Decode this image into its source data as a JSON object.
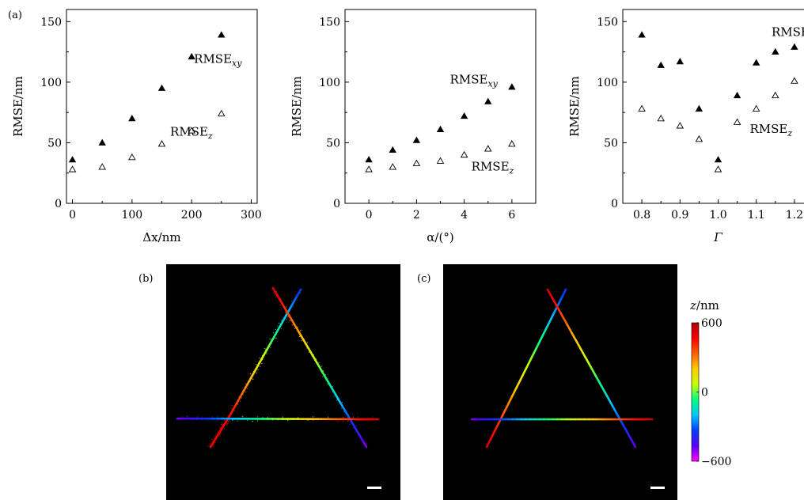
{
  "chart_data": [
    {
      "type": "scatter",
      "panel_label": "(a)",
      "xlabel": "Δx/nm",
      "ylabel": "RMSE/nm",
      "xlim": [
        -10,
        310
      ],
      "ylim": [
        0,
        160
      ],
      "xticks": [
        0,
        100,
        200,
        300
      ],
      "xminor": [
        50,
        150,
        250
      ],
      "yticks": [
        0,
        50,
        100,
        150
      ],
      "series": [
        {
          "name": "RMSExy",
          "marker": "filled-triangle",
          "x": [
            0,
            50,
            100,
            150,
            200,
            250
          ],
          "y": [
            36,
            50,
            70,
            95,
            121,
            139
          ]
        },
        {
          "name": "RMSEz",
          "marker": "open-triangle",
          "x": [
            0,
            50,
            100,
            150,
            200,
            250
          ],
          "y": [
            28,
            30,
            38,
            49,
            60,
            74
          ]
        }
      ],
      "annotations": [
        {
          "series": "RMSExy",
          "text_main": "RMSE",
          "text_sub": "xy",
          "at": [
            204,
            116
          ]
        },
        {
          "series": "RMSEz",
          "text_main": "RMSE",
          "text_sub": "z",
          "at": [
            164,
            56
          ]
        }
      ]
    },
    {
      "type": "scatter",
      "xlabel": "α/(°)",
      "ylabel": "RMSE/nm",
      "xlim": [
        -1,
        7
      ],
      "ylim": [
        0,
        160
      ],
      "xticks": [
        0,
        2,
        4,
        6
      ],
      "xminor": [
        1,
        3,
        5
      ],
      "yticks": [
        0,
        50,
        100,
        150
      ],
      "series": [
        {
          "name": "RMSExy",
          "marker": "filled-triangle",
          "x": [
            0,
            1,
            2,
            3,
            4,
            5,
            6
          ],
          "y": [
            36,
            44,
            52,
            61,
            72,
            84,
            96
          ]
        },
        {
          "name": "RMSEz",
          "marker": "open-triangle",
          "x": [
            0,
            1,
            2,
            3,
            4,
            5,
            6
          ],
          "y": [
            28,
            30,
            33,
            35,
            40,
            45,
            49
          ]
        }
      ],
      "annotations": [
        {
          "series": "RMSExy",
          "text_main": "RMSE",
          "text_sub": "xy",
          "at": [
            3.4,
            99
          ]
        },
        {
          "series": "RMSEz",
          "text_main": "RMSE",
          "text_sub": "z",
          "at": [
            4.3,
            27
          ]
        }
      ]
    },
    {
      "type": "scatter",
      "xlabel": "Γ",
      "ylabel": "RMSE/nm",
      "xlim": [
        0.75,
        1.25
      ],
      "ylim": [
        0,
        160
      ],
      "xticks": [
        0.8,
        0.9,
        1.0,
        1.1,
        1.2
      ],
      "xticklabels": [
        "0.8",
        "0.9",
        "1.0",
        "1.1",
        "1.2"
      ],
      "xminor": [
        0.85,
        0.95,
        1.05,
        1.15
      ],
      "yticks": [
        0,
        50,
        100,
        150
      ],
      "series": [
        {
          "name": "RMSExy",
          "marker": "filled-triangle",
          "x": [
            0.8,
            0.85,
            0.9,
            0.95,
            1.0,
            1.05,
            1.1,
            1.15,
            1.2
          ],
          "y": [
            139,
            114,
            117,
            78,
            36,
            89,
            116,
            125,
            129
          ]
        },
        {
          "name": "RMSEz",
          "marker": "open-triangle",
          "x": [
            0.8,
            0.85,
            0.9,
            0.95,
            1.0,
            1.05,
            1.1,
            1.15,
            1.2
          ],
          "y": [
            78,
            70,
            64,
            53,
            28,
            67,
            78,
            89,
            101
          ]
        }
      ],
      "annotations": [
        {
          "series": "RMSExy",
          "text_main": "RMSE",
          "text_sub": "xy",
          "at": [
            1.14,
            138
          ]
        },
        {
          "series": "RMSEz",
          "text_main": "RMSE",
          "text_sub": "z",
          "at": [
            1.083,
            58
          ]
        }
      ]
    }
  ],
  "images": [
    {
      "panel_label": "(b)",
      "colormap": "rainbow",
      "background": "#000000"
    },
    {
      "panel_label": "(c)",
      "colormap": "rainbow",
      "background": "#000000"
    }
  ],
  "colorbar": {
    "label_main": "z",
    "label_unit": "/nm",
    "ticks": [
      600,
      0,
      -600
    ],
    "ticklabels": [
      "600",
      "0",
      "−600"
    ],
    "colors": [
      "#ff00ff",
      "#5a00ff",
      "#0040ff",
      "#00c8ff",
      "#00ff80",
      "#c8ff00",
      "#ffcc00",
      "#ff6000",
      "#ff0000",
      "#a80000"
    ]
  }
}
